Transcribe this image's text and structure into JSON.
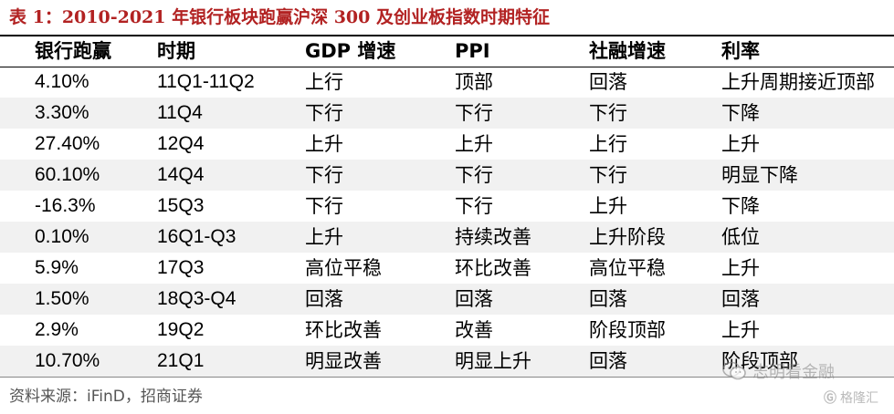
{
  "title": "表 1：2010-2021 年银行板块跑赢沪深 300 及创业板指数时期特征",
  "table": {
    "headers": [
      "银行跑赢",
      "时期",
      "GDP 增速",
      "PPI",
      "社融增速",
      "利率"
    ],
    "rows": [
      [
        "4.10%",
        "11Q1-11Q2",
        "上行",
        "顶部",
        "回落",
        "上升周期接近顶部"
      ],
      [
        "3.30%",
        "11Q4",
        "下行",
        "下行",
        "下行",
        "下降"
      ],
      [
        "27.40%",
        "12Q4",
        "上升",
        "上升",
        "上行",
        "上升"
      ],
      [
        "60.10%",
        "14Q4",
        "下行",
        "下行",
        "下行",
        "明显下降"
      ],
      [
        "-16.3%",
        "15Q3",
        "下行",
        "下行",
        "上升",
        "下降"
      ],
      [
        "0.10%",
        "16Q1-Q3",
        "上升",
        "持续改善",
        "上升阶段",
        "低位"
      ],
      [
        "5.9%",
        "17Q3",
        "高位平稳",
        "环比改善",
        "高位平稳",
        "上升"
      ],
      [
        "1.50%",
        "18Q3-Q4",
        "回落",
        "回落",
        "回落",
        "回落"
      ],
      [
        "2.9%",
        "19Q2",
        "环比改善",
        "改善",
        "阶段顶部",
        "上升"
      ],
      [
        "10.70%",
        "21Q1",
        "明显改善",
        "明显上升",
        "回落",
        "阶段顶部"
      ]
    ]
  },
  "source": "资料来源：iFinD，招商证券",
  "watermark": {
    "text": "志明看金融",
    "brand": "格隆汇",
    "icon": "wechat-icon"
  },
  "colors": {
    "title": "#b22222",
    "shaded_row": "#f1f1f1"
  }
}
